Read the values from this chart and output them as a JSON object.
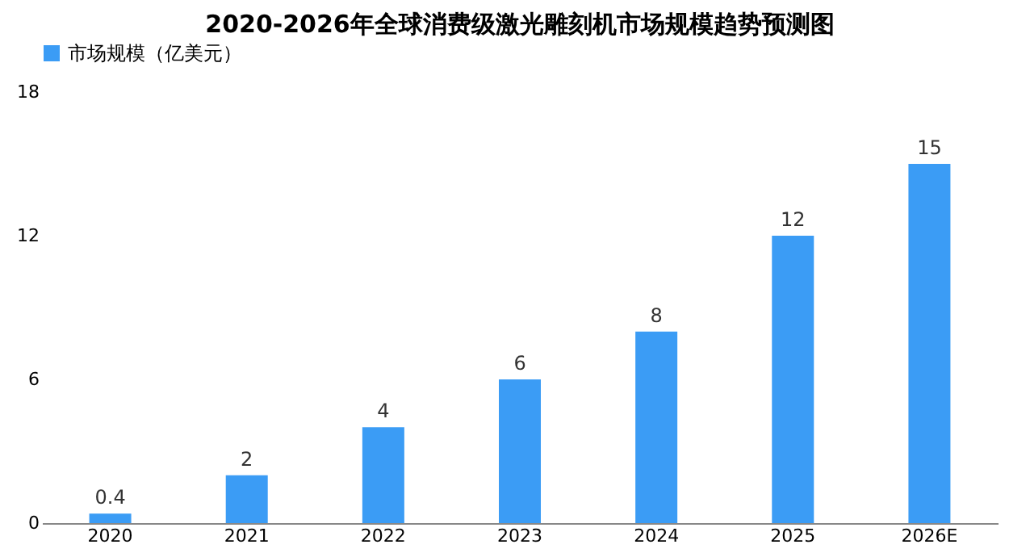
{
  "chart_data": {
    "type": "bar",
    "title": "2020-2026年全球消费级激光雕刻机市场规模趋势预测图",
    "categories": [
      "2020",
      "2021",
      "2022",
      "2023",
      "2024",
      "2025",
      "2026E"
    ],
    "series": [
      {
        "name": "市场规模（亿美元）",
        "color": "#3b9cf5",
        "values": [
          0.4,
          2,
          4,
          6,
          8,
          12,
          15
        ]
      }
    ],
    "ylim": [
      0,
      18
    ],
    "yticks": [
      0,
      6,
      12,
      18
    ],
    "grid": false,
    "legend": "top",
    "data_labels": true
  }
}
